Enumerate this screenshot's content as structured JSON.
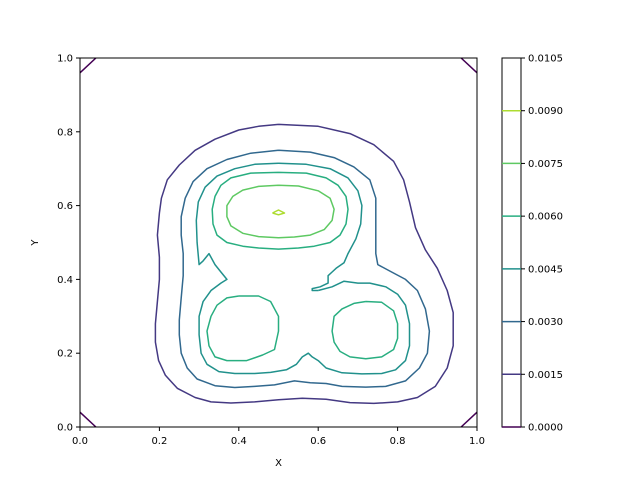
{
  "chart_data": {
    "type": "contour",
    "xlabel": "X",
    "ylabel": "Y",
    "xlim": [
      0,
      1
    ],
    "ylim": [
      0,
      1
    ],
    "x_ticks": [
      "0.0",
      "0.2",
      "0.4",
      "0.6",
      "0.8",
      "1.0"
    ],
    "y_ticks": [
      "0.0",
      "0.2",
      "0.4",
      "0.6",
      "0.8",
      "1.0"
    ],
    "colorbar": {
      "min": 0.0,
      "max": 0.0105,
      "ticks": [
        "0.0000",
        "0.0015",
        "0.0030",
        "0.0045",
        "0.0060",
        "0.0075",
        "0.0090",
        "0.0105"
      ],
      "placement": "right"
    },
    "grid": false,
    "levels": [
      {
        "level": 0.0,
        "color": "#440154",
        "paths": [
          [
            [
              0.0,
              0.96
            ],
            [
              0.04,
              1.0
            ]
          ],
          [
            [
              0.96,
              1.0
            ],
            [
              1.0,
              0.96
            ]
          ],
          [
            [
              0.0,
              0.04
            ],
            [
              0.04,
              0.0
            ]
          ],
          [
            [
              0.96,
              0.0
            ],
            [
              1.0,
              0.04
            ]
          ]
        ]
      },
      {
        "level": 0.0015,
        "color": "#443983",
        "paths": [
          [
            [
              0.5,
              0.82
            ],
            [
              0.6,
              0.815
            ],
            [
              0.68,
              0.795
            ],
            [
              0.74,
              0.765
            ],
            [
              0.79,
              0.72
            ],
            [
              0.815,
              0.67
            ],
            [
              0.83,
              0.61
            ],
            [
              0.845,
              0.54
            ],
            [
              0.87,
              0.48
            ],
            [
              0.9,
              0.43
            ],
            [
              0.925,
              0.37
            ],
            [
              0.94,
              0.31
            ],
            [
              0.94,
              0.22
            ],
            [
              0.925,
              0.16
            ],
            [
              0.895,
              0.11
            ],
            [
              0.85,
              0.08
            ],
            [
              0.8,
              0.068
            ],
            [
              0.74,
              0.064
            ],
            [
              0.68,
              0.066
            ],
            [
              0.62,
              0.075
            ],
            [
              0.56,
              0.078
            ],
            [
              0.5,
              0.074
            ],
            [
              0.44,
              0.068
            ],
            [
              0.38,
              0.065
            ],
            [
              0.33,
              0.068
            ],
            [
              0.29,
              0.08
            ],
            [
              0.245,
              0.105
            ],
            [
              0.215,
              0.14
            ],
            [
              0.198,
              0.18
            ],
            [
              0.19,
              0.23
            ],
            [
              0.19,
              0.28
            ],
            [
              0.195,
              0.34
            ],
            [
              0.2,
              0.4
            ],
            [
              0.2,
              0.46
            ],
            [
              0.195,
              0.52
            ],
            [
              0.2,
              0.58
            ],
            [
              0.205,
              0.62
            ],
            [
              0.22,
              0.67
            ],
            [
              0.25,
              0.71
            ],
            [
              0.29,
              0.75
            ],
            [
              0.34,
              0.78
            ],
            [
              0.4,
              0.805
            ],
            [
              0.45,
              0.815
            ],
            [
              0.5,
              0.82
            ]
          ]
        ]
      },
      {
        "level": 0.003,
        "color": "#31688e",
        "paths": [
          [
            [
              0.5,
              0.75
            ],
            [
              0.58,
              0.745
            ],
            [
              0.64,
              0.73
            ],
            [
              0.69,
              0.705
            ],
            [
              0.73,
              0.67
            ],
            [
              0.745,
              0.62
            ],
            [
              0.745,
              0.55
            ],
            [
              0.745,
              0.47
            ],
            [
              0.75,
              0.44
            ],
            [
              0.785,
              0.42
            ],
            [
              0.82,
              0.4
            ],
            [
              0.85,
              0.37
            ],
            [
              0.87,
              0.32
            ],
            [
              0.88,
              0.26
            ],
            [
              0.875,
              0.2
            ],
            [
              0.855,
              0.16
            ],
            [
              0.82,
              0.125
            ],
            [
              0.77,
              0.11
            ],
            [
              0.72,
              0.108
            ],
            [
              0.66,
              0.11
            ],
            [
              0.62,
              0.118
            ],
            [
              0.58,
              0.12
            ],
            [
              0.54,
              0.125
            ],
            [
              0.49,
              0.114
            ],
            [
              0.44,
              0.11
            ],
            [
              0.39,
              0.107
            ],
            [
              0.34,
              0.112
            ],
            [
              0.295,
              0.13
            ],
            [
              0.27,
              0.16
            ],
            [
              0.255,
              0.2
            ],
            [
              0.25,
              0.25
            ],
            [
              0.25,
              0.29
            ],
            [
              0.255,
              0.35
            ],
            [
              0.26,
              0.41
            ],
            [
              0.26,
              0.47
            ],
            [
              0.255,
              0.52
            ],
            [
              0.255,
              0.57
            ],
            [
              0.265,
              0.62
            ],
            [
              0.285,
              0.665
            ],
            [
              0.32,
              0.7
            ],
            [
              0.37,
              0.725
            ],
            [
              0.43,
              0.742
            ],
            [
              0.5,
              0.75
            ]
          ]
        ]
      },
      {
        "level": 0.0045,
        "color": "#21918c",
        "paths": [
          [
            [
              0.5,
              0.715
            ],
            [
              0.57,
              0.712
            ],
            [
              0.63,
              0.7
            ],
            [
              0.675,
              0.675
            ],
            [
              0.7,
              0.64
            ],
            [
              0.71,
              0.6
            ],
            [
              0.707,
              0.55
            ],
            [
              0.695,
              0.51
            ],
            [
              0.675,
              0.47
            ],
            [
              0.665,
              0.445
            ],
            [
              0.645,
              0.43
            ],
            [
              0.635,
              0.42
            ],
            [
              0.625,
              0.41
            ],
            [
              0.625,
              0.39
            ],
            [
              0.605,
              0.38
            ],
            [
              0.585,
              0.375
            ],
            [
              0.585,
              0.37
            ],
            [
              0.6,
              0.37
            ]
          ],
          [
            [
              0.6,
              0.37
            ],
            [
              0.635,
              0.38
            ],
            [
              0.665,
              0.395
            ],
            [
              0.7,
              0.39
            ],
            [
              0.73,
              0.39
            ],
            [
              0.77,
              0.38
            ],
            [
              0.8,
              0.36
            ],
            [
              0.82,
              0.33
            ],
            [
              0.83,
              0.28
            ],
            [
              0.83,
              0.22
            ],
            [
              0.82,
              0.18
            ],
            [
              0.795,
              0.155
            ],
            [
              0.76,
              0.145
            ],
            [
              0.71,
              0.144
            ],
            [
              0.66,
              0.147
            ],
            [
              0.62,
              0.16
            ],
            [
              0.6,
              0.18
            ],
            [
              0.585,
              0.19
            ],
            [
              0.575,
              0.2
            ],
            [
              0.56,
              0.19
            ],
            [
              0.545,
              0.17
            ],
            [
              0.52,
              0.155
            ],
            [
              0.48,
              0.148
            ],
            [
              0.44,
              0.145
            ],
            [
              0.39,
              0.145
            ],
            [
              0.35,
              0.15
            ],
            [
              0.32,
              0.17
            ],
            [
              0.305,
              0.2
            ],
            [
              0.3,
              0.25
            ],
            [
              0.3,
              0.3
            ],
            [
              0.31,
              0.34
            ],
            [
              0.33,
              0.37
            ],
            [
              0.355,
              0.39
            ],
            [
              0.37,
              0.4
            ],
            [
              0.355,
              0.42
            ],
            [
              0.34,
              0.44
            ],
            [
              0.325,
              0.47
            ],
            [
              0.31,
              0.45
            ],
            [
              0.3,
              0.44
            ],
            [
              0.295,
              0.5
            ],
            [
              0.293,
              0.56
            ],
            [
              0.298,
              0.61
            ],
            [
              0.315,
              0.65
            ],
            [
              0.345,
              0.68
            ],
            [
              0.39,
              0.7
            ],
            [
              0.44,
              0.712
            ],
            [
              0.5,
              0.715
            ]
          ]
        ]
      },
      {
        "level": 0.006,
        "color": "#28ae80",
        "paths": [
          [
            [
              0.5,
              0.69
            ],
            [
              0.57,
              0.688
            ],
            [
              0.62,
              0.675
            ],
            [
              0.65,
              0.655
            ],
            [
              0.67,
              0.625
            ],
            [
              0.675,
              0.59
            ],
            [
              0.67,
              0.55
            ],
            [
              0.655,
              0.52
            ],
            [
              0.63,
              0.5
            ],
            [
              0.59,
              0.49
            ],
            [
              0.55,
              0.485
            ],
            [
              0.5,
              0.482
            ],
            [
              0.45,
              0.485
            ],
            [
              0.41,
              0.49
            ],
            [
              0.37,
              0.5
            ],
            [
              0.345,
              0.52
            ],
            [
              0.335,
              0.55
            ],
            [
              0.333,
              0.59
            ],
            [
              0.34,
              0.625
            ],
            [
              0.355,
              0.655
            ],
            [
              0.38,
              0.675
            ],
            [
              0.43,
              0.688
            ],
            [
              0.5,
              0.69
            ]
          ],
          [
            [
              0.4,
              0.355
            ],
            [
              0.45,
              0.355
            ],
            [
              0.48,
              0.34
            ],
            [
              0.5,
              0.3
            ],
            [
              0.5,
              0.26
            ],
            [
              0.49,
              0.21
            ],
            [
              0.46,
              0.195
            ],
            [
              0.42,
              0.18
            ],
            [
              0.37,
              0.18
            ],
            [
              0.34,
              0.19
            ],
            [
              0.325,
              0.22
            ],
            [
              0.32,
              0.26
            ],
            [
              0.33,
              0.3
            ],
            [
              0.345,
              0.33
            ],
            [
              0.37,
              0.35
            ],
            [
              0.4,
              0.355
            ]
          ],
          [
            [
              0.72,
              0.34
            ],
            [
              0.76,
              0.338
            ],
            [
              0.79,
              0.315
            ],
            [
              0.8,
              0.28
            ],
            [
              0.8,
              0.24
            ],
            [
              0.79,
              0.21
            ],
            [
              0.76,
              0.19
            ],
            [
              0.72,
              0.185
            ],
            [
              0.68,
              0.19
            ],
            [
              0.655,
              0.205
            ],
            [
              0.64,
              0.23
            ],
            [
              0.635,
              0.26
            ],
            [
              0.64,
              0.3
            ],
            [
              0.66,
              0.32
            ],
            [
              0.69,
              0.335
            ],
            [
              0.72,
              0.34
            ]
          ]
        ]
      },
      {
        "level": 0.0075,
        "color": "#5ec962",
        "paths": [
          [
            [
              0.5,
              0.655
            ],
            [
              0.55,
              0.653
            ],
            [
              0.6,
              0.64
            ],
            [
              0.63,
              0.62
            ],
            [
              0.64,
              0.59
            ],
            [
              0.635,
              0.56
            ],
            [
              0.615,
              0.535
            ],
            [
              0.58,
              0.52
            ],
            [
              0.54,
              0.515
            ],
            [
              0.5,
              0.513
            ],
            [
              0.45,
              0.516
            ],
            [
              0.41,
              0.525
            ],
            [
              0.38,
              0.545
            ],
            [
              0.37,
              0.57
            ],
            [
              0.37,
              0.6
            ],
            [
              0.385,
              0.625
            ],
            [
              0.41,
              0.642
            ],
            [
              0.45,
              0.652
            ],
            [
              0.5,
              0.655
            ]
          ]
        ]
      },
      {
        "level": 0.009,
        "color": "#addc30",
        "paths": [
          [
            [
              0.485,
              0.58
            ],
            [
              0.5,
              0.588
            ],
            [
              0.515,
              0.58
            ],
            [
              0.5,
              0.575
            ],
            [
              0.485,
              0.58
            ]
          ]
        ]
      }
    ]
  }
}
